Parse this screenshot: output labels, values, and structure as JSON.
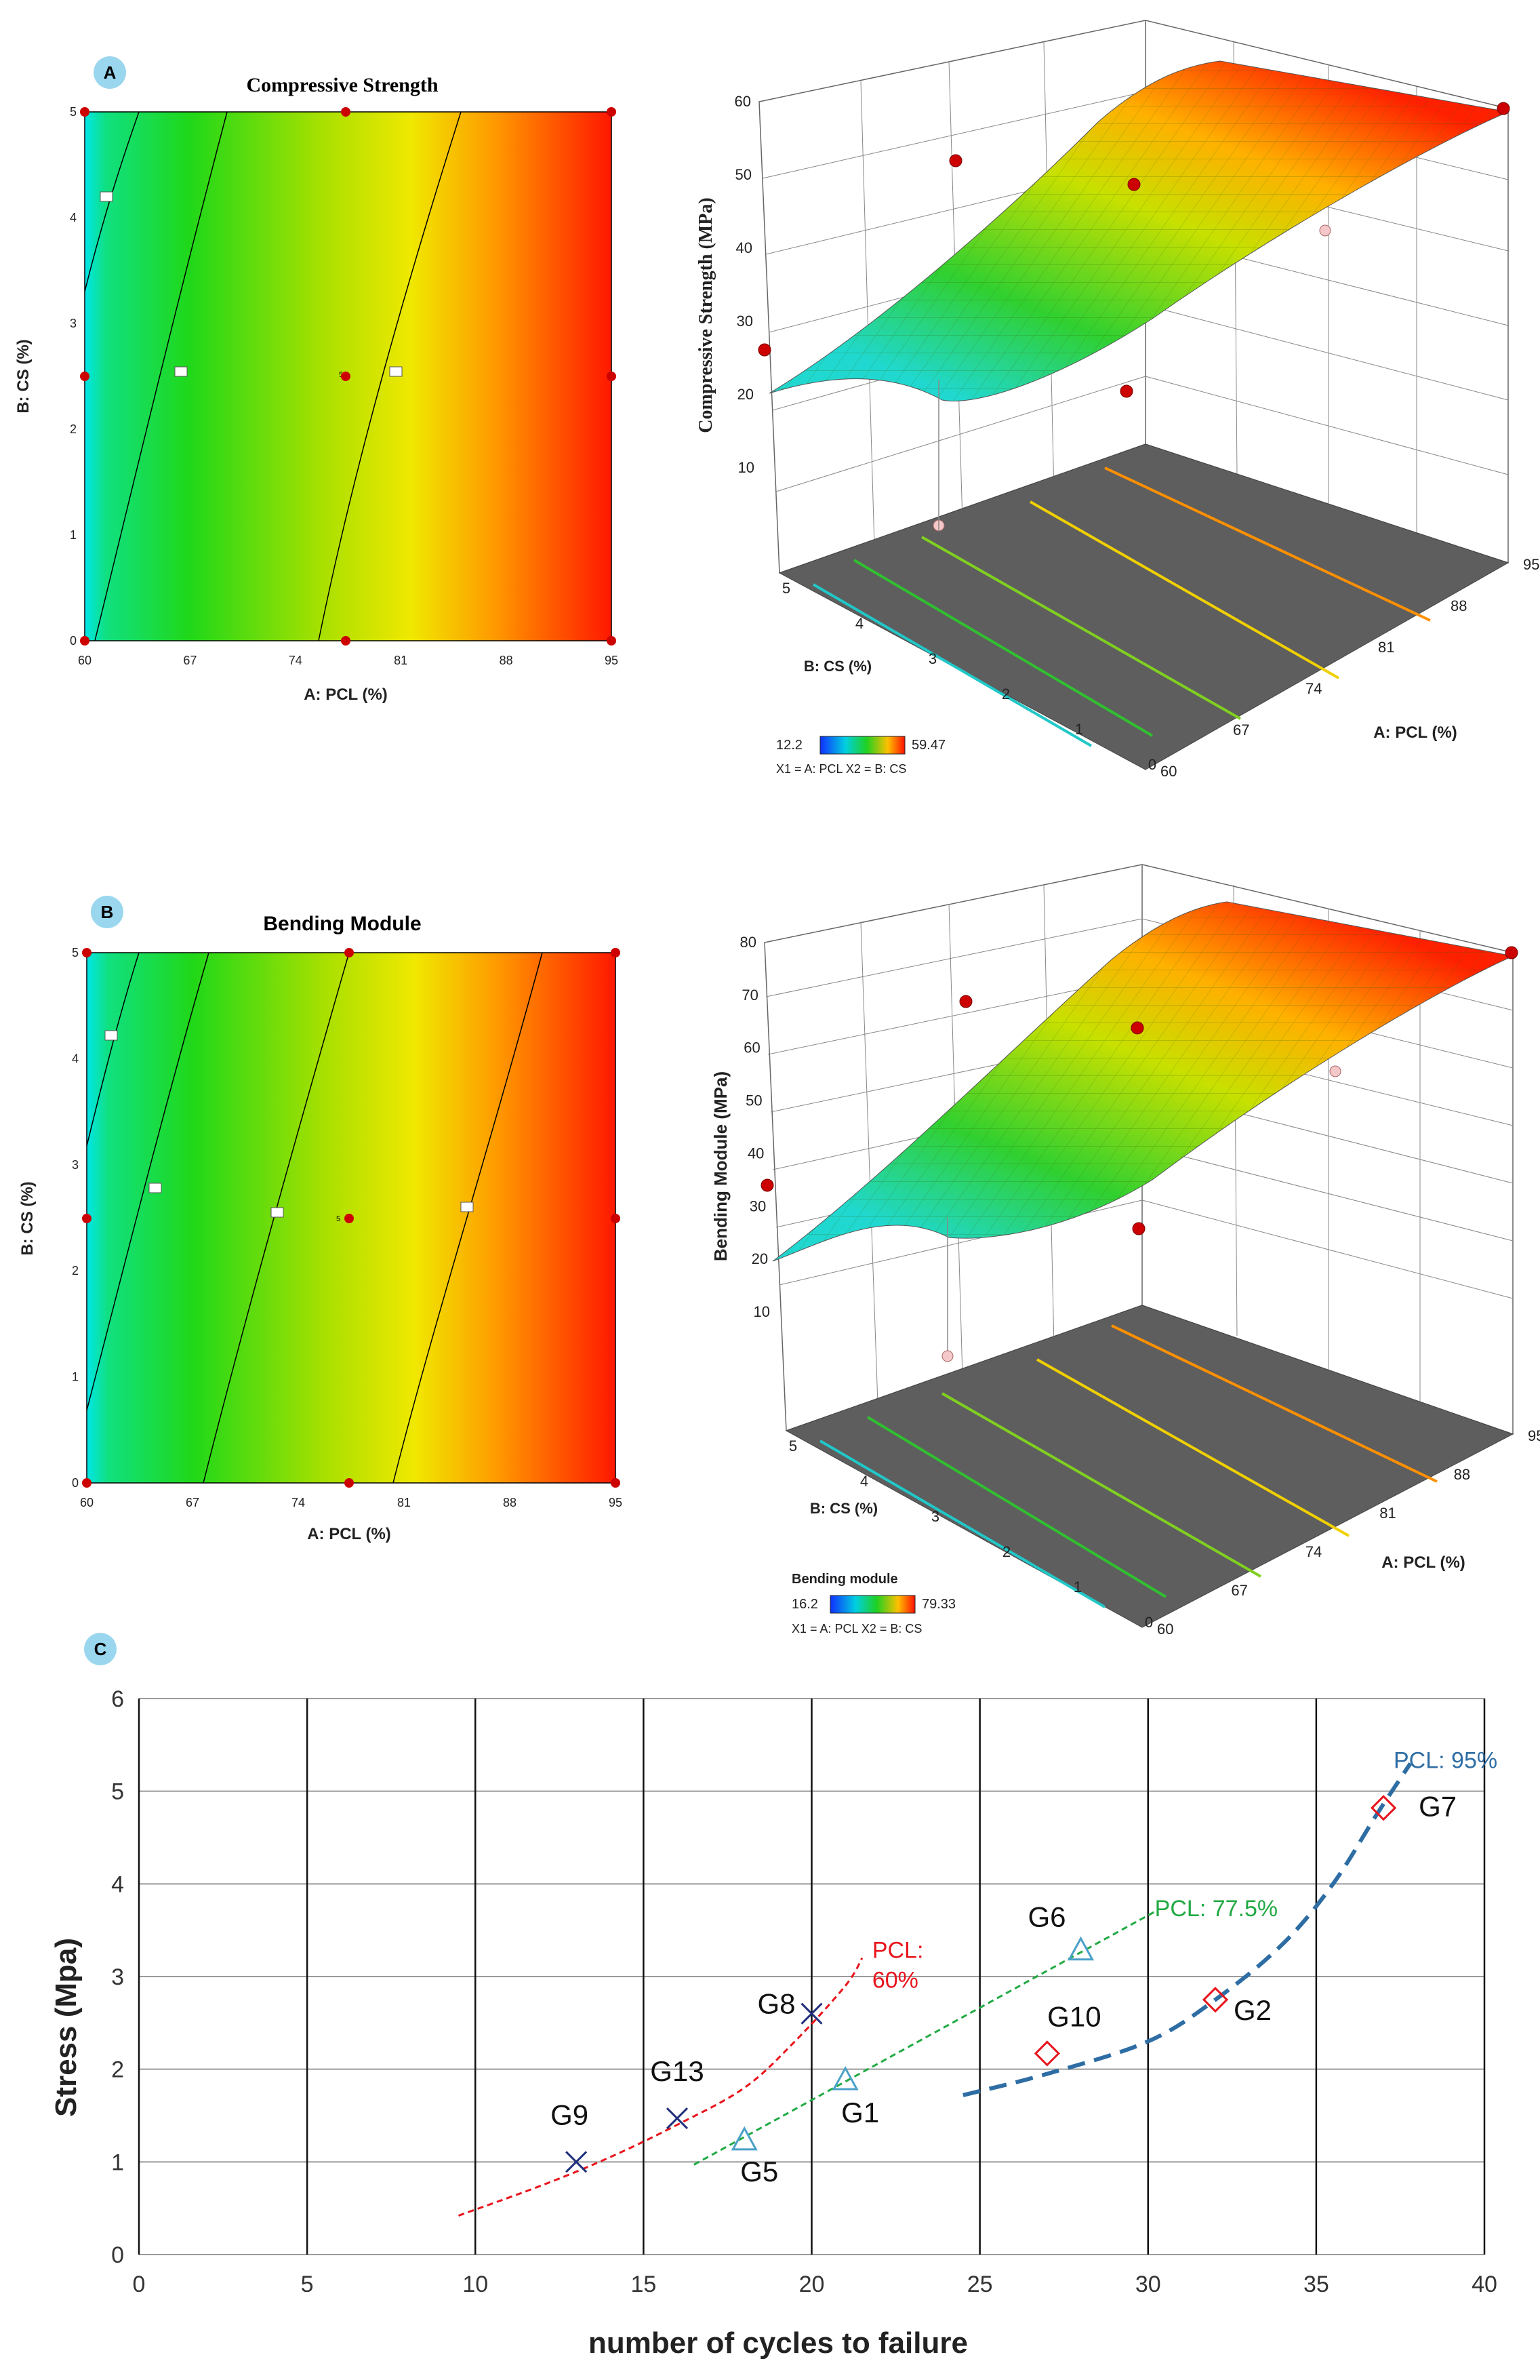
{
  "panels": {
    "a": {
      "letter": "A",
      "contour_title": "Compressive Strength",
      "xlabel": "A: PCL (%)",
      "ylabel": "B: CS (%)",
      "zlabel": "Compressive Strength  (MPa)",
      "x_ticks": [
        "60",
        "67",
        "74",
        "81",
        "88",
        "95"
      ],
      "y_ticks": [
        "0",
        "1",
        "2",
        "3",
        "4",
        "5"
      ],
      "z_ticks": [
        "10",
        "20",
        "30",
        "40",
        "50",
        "60"
      ],
      "center_count": "5",
      "legend_min": "12.2",
      "legend_max": "59.47",
      "factor_key": "X1 = A: PCL  X2 = B: CS"
    },
    "b": {
      "letter": "B",
      "contour_title": "Bending Module",
      "xlabel": "A: PCL (%)",
      "ylabel": "B: CS (%)",
      "zlabel": "Bending Module  (MPa)",
      "x_ticks": [
        "60",
        "67",
        "74",
        "81",
        "88",
        "95"
      ],
      "y_ticks": [
        "0",
        "1",
        "2",
        "3",
        "4",
        "5"
      ],
      "z_ticks": [
        "10",
        "20",
        "30",
        "40",
        "50",
        "60",
        "70",
        "80"
      ],
      "center_count": "5",
      "legend_title": "Bending module",
      "legend_min": "16.2",
      "legend_max": "79.33",
      "factor_key": "X1 = A: PCL  X2 = B: CS"
    },
    "c": {
      "letter": "C"
    }
  },
  "chart_data": {
    "type": "scatter",
    "title": "",
    "xlabel": "number of cycles to failure",
    "ylabel": "Stress (Mpa)",
    "xlim": [
      0,
      40
    ],
    "ylim": [
      0,
      6
    ],
    "x_ticks": [
      0,
      5,
      10,
      15,
      20,
      25,
      30,
      35,
      40
    ],
    "y_ticks": [
      0,
      1,
      2,
      3,
      4,
      5,
      6
    ],
    "series": [
      {
        "name": "PCL: 60%",
        "label_lines": [
          "PCL:",
          "60%"
        ],
        "color": "#e8141c",
        "marker": "x",
        "marker_color": "#1f2f7a",
        "points": [
          {
            "label": "G9",
            "x": 13,
            "y": 1.0
          },
          {
            "label": "G13",
            "x": 16,
            "y": 1.47
          },
          {
            "label": "G8",
            "x": 20,
            "y": 2.6
          }
        ],
        "trend": [
          [
            9.5,
            0.42
          ],
          [
            12,
            0.75
          ],
          [
            14,
            1.05
          ],
          [
            16,
            1.4
          ],
          [
            18,
            1.8
          ],
          [
            19.5,
            2.3
          ],
          [
            21,
            2.9
          ],
          [
            21.5,
            3.2
          ]
        ]
      },
      {
        "name": "PCL: 77.5%",
        "label_lines": [
          "PCL: 77.5%"
        ],
        "color": "#22aa44",
        "marker": "triangle",
        "marker_color": "#4aa0c8",
        "points": [
          {
            "label": "G5",
            "x": 18,
            "y": 1.23
          },
          {
            "label": "G1",
            "x": 21,
            "y": 1.88
          },
          {
            "label": "G6",
            "x": 28,
            "y": 3.28
          }
        ],
        "trend": [
          [
            16.5,
            0.97
          ],
          [
            30.2,
            3.7
          ]
        ]
      },
      {
        "name": "PCL: 95%",
        "label_lines": [
          "PCL: 95%"
        ],
        "color": "#2e6da4",
        "marker": "diamond",
        "marker_color": "#e8141c",
        "points": [
          {
            "label": "G10",
            "x": 27,
            "y": 2.17
          },
          {
            "label": "G2",
            "x": 32,
            "y": 2.75
          },
          {
            "label": "G7",
            "x": 37,
            "y": 4.82
          }
        ],
        "trend": [
          [
            24.5,
            1.72
          ],
          [
            27,
            1.95
          ],
          [
            30,
            2.3
          ],
          [
            32,
            2.75
          ],
          [
            34,
            3.35
          ],
          [
            35.5,
            4.0
          ],
          [
            36.8,
            4.75
          ],
          [
            37.8,
            5.3
          ]
        ]
      }
    ]
  }
}
